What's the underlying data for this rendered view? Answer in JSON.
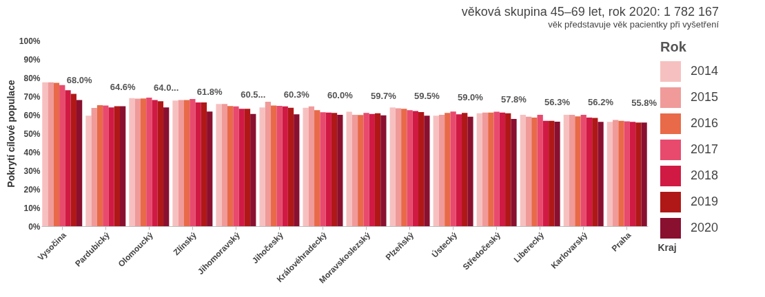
{
  "chart_data": {
    "type": "bar",
    "title": "věková skupina 45–69 let, rok 2020: 1 782 167",
    "subtitle": "věk představuje věk pacientky při vyšetření",
    "xlabel": "Kraj",
    "ylabel": "Pokrytí cílové populace",
    "legend_title": "Rok",
    "legend": "right",
    "categories": [
      "Vysočina",
      "Pardubický",
      "Olomoucký",
      "Zlínský",
      "Jihomoravský",
      "Jihočeský",
      "Královéhradecký",
      "Moravskoslezský",
      "Plzeňský",
      "Ústecký",
      "Středočeský",
      "Liberecký",
      "Karlovarský",
      "Praha"
    ],
    "ylim": [
      0,
      100
    ],
    "yticks": [
      {
        "value": 0,
        "label": "0%"
      },
      {
        "value": 10,
        "label": "10%"
      },
      {
        "value": 20,
        "label": "20%"
      },
      {
        "value": 30,
        "label": "30%"
      },
      {
        "value": 40,
        "label": "40%"
      },
      {
        "value": 50,
        "label": "50%"
      },
      {
        "value": 60,
        "label": "60%"
      },
      {
        "value": 70,
        "label": "70%"
      },
      {
        "value": 80,
        "label": "80%"
      },
      {
        "value": 90,
        "label": "90%"
      },
      {
        "value": 100,
        "label": "100%"
      }
    ],
    "series": [
      {
        "name": "2014",
        "color": "#f7c0c0",
        "values": [
          77.5,
          59.5,
          69,
          67.7,
          65.8,
          64,
          63.8,
          61.7,
          64,
          59.5,
          60.8,
          60,
          60,
          56.2
        ]
      },
      {
        "name": "2015",
        "color": "#f09a9a",
        "values": [
          77.5,
          63.7,
          68.7,
          68,
          65.8,
          67,
          64.5,
          60,
          63.5,
          60,
          61.2,
          59,
          60,
          57.2
        ]
      },
      {
        "name": "2016",
        "color": "#e86a48",
        "values": [
          77.2,
          65.2,
          68.8,
          68,
          64.7,
          65,
          62.5,
          59.9,
          63.2,
          61,
          61.2,
          58.5,
          59.2,
          56.8
        ]
      },
      {
        "name": "2017",
        "color": "#e84a6e",
        "values": [
          76,
          65,
          69.3,
          68.5,
          64.5,
          64.8,
          61.4,
          61,
          62.5,
          61.8,
          61.7,
          60,
          60,
          56.5
        ]
      },
      {
        "name": "2018",
        "color": "#d01a44",
        "values": [
          73.2,
          64,
          68,
          66.7,
          63.2,
          64.5,
          61.2,
          60.5,
          62,
          60.3,
          61.2,
          56.8,
          58.5,
          56.2
        ]
      },
      {
        "name": "2019",
        "color": "#b01818",
        "values": [
          71.3,
          64.6,
          67.3,
          66.7,
          63.2,
          63.8,
          61,
          60.8,
          61.5,
          61,
          60.8,
          56.8,
          58.3,
          55.8
        ]
      },
      {
        "name": "2020",
        "color": "#8a1030",
        "values": [
          68.0,
          64.6,
          64.0,
          61.8,
          60.5,
          60.3,
          60.0,
          59.7,
          59.5,
          59.0,
          57.8,
          56.3,
          56.2,
          55.8
        ],
        "value_labels": [
          "68.0%",
          "64.6%",
          "64.0...",
          "61.8%",
          "60.5...",
          "60.3%",
          "60.0%",
          "59.7%",
          "59.5%",
          "59.0%",
          "57.8%",
          "56.3%",
          "56.2%",
          "55.8%"
        ]
      }
    ]
  }
}
